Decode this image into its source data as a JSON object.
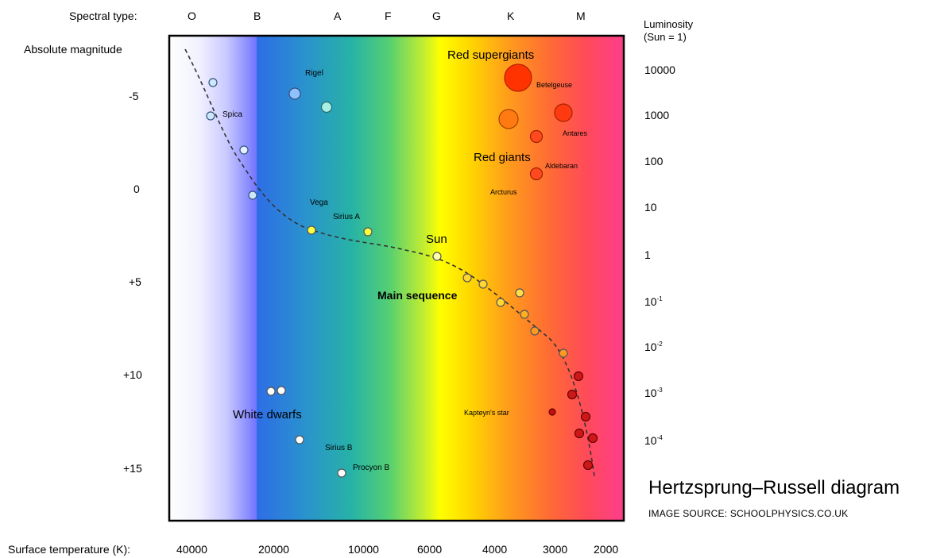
{
  "axes": {
    "spectral_type_label": "Spectral type:",
    "spectral_types": [
      "O",
      "B",
      "A",
      "F",
      "G",
      "K",
      "M"
    ],
    "magnitude_label": "Absolute magnitude",
    "magnitude_ticks": [
      "-5",
      "0",
      "+5",
      "+10",
      "+15"
    ],
    "luminosity_label_line1": "Luminosity",
    "luminosity_label_line2": "(Sun = 1)",
    "luminosity_ticks": [
      {
        "base": "10000",
        "exp": ""
      },
      {
        "base": "1000",
        "exp": ""
      },
      {
        "base": "100",
        "exp": ""
      },
      {
        "base": "10",
        "exp": ""
      },
      {
        "base": "1",
        "exp": ""
      },
      {
        "base": "10",
        "exp": "-1"
      },
      {
        "base": "10",
        "exp": "-2"
      },
      {
        "base": "10",
        "exp": "-3"
      },
      {
        "base": "10",
        "exp": "-4"
      }
    ],
    "temperature_label": "Surface temperature (K):",
    "temperature_ticks": [
      "40000",
      "20000",
      "10000",
      "6000",
      "4000",
      "3000",
      "2000"
    ]
  },
  "regions": {
    "red_supergiants": "Red supergiants",
    "red_giants": "Red giants",
    "main_sequence": "Main sequence",
    "white_dwarfs": "White dwarfs"
  },
  "stars": {
    "rigel": "Rigel",
    "spica": "Spica",
    "vega": "Vega",
    "sirius_a": "Sirius A",
    "sun": "Sun",
    "betelgeuse": "Betelgeuse",
    "antares": "Antares",
    "aldebaran": "Aldebaran",
    "arcturus": "Arcturus",
    "kapteyns_star": "Kapteyn's star",
    "sirius_b": "Sirius B",
    "procyon_b": "Procyon B"
  },
  "caption": {
    "title": "Hertzsprung–Russell diagram",
    "source": "IMAGE SOURCE: SCHOOLPHYSICS.CO.UK"
  },
  "colors": {
    "o_band": "#f4f4ff",
    "b_band": "#6f72ff",
    "blue": "#2a6ef0",
    "green": "#33c9a0",
    "yellow": "#ffff00",
    "orange": "#ff9a1a",
    "red": "#ff4a4a",
    "magenta": "#ff3d8c",
    "frame": "#000000"
  }
}
